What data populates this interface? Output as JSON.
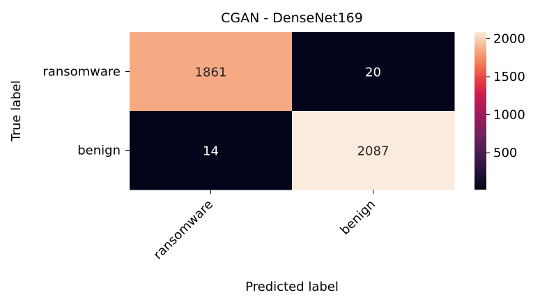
{
  "chart_data": {
    "type": "heatmap",
    "title": "CGAN - DenseNet169",
    "xlabel": "Predicted label",
    "ylabel": "True label",
    "x_categories": [
      "ransomware",
      "benign"
    ],
    "y_categories": [
      "ransomware",
      "benign"
    ],
    "values": [
      [
        1861,
        20
      ],
      [
        14,
        2087
      ]
    ],
    "colorbar": {
      "min": 14,
      "max": 2087,
      "ticks": [
        "500",
        "1000",
        "1500",
        "2000"
      ],
      "tick_values": [
        500,
        1000,
        1500,
        2000
      ]
    },
    "colormap": "rocket",
    "grid": false
  }
}
